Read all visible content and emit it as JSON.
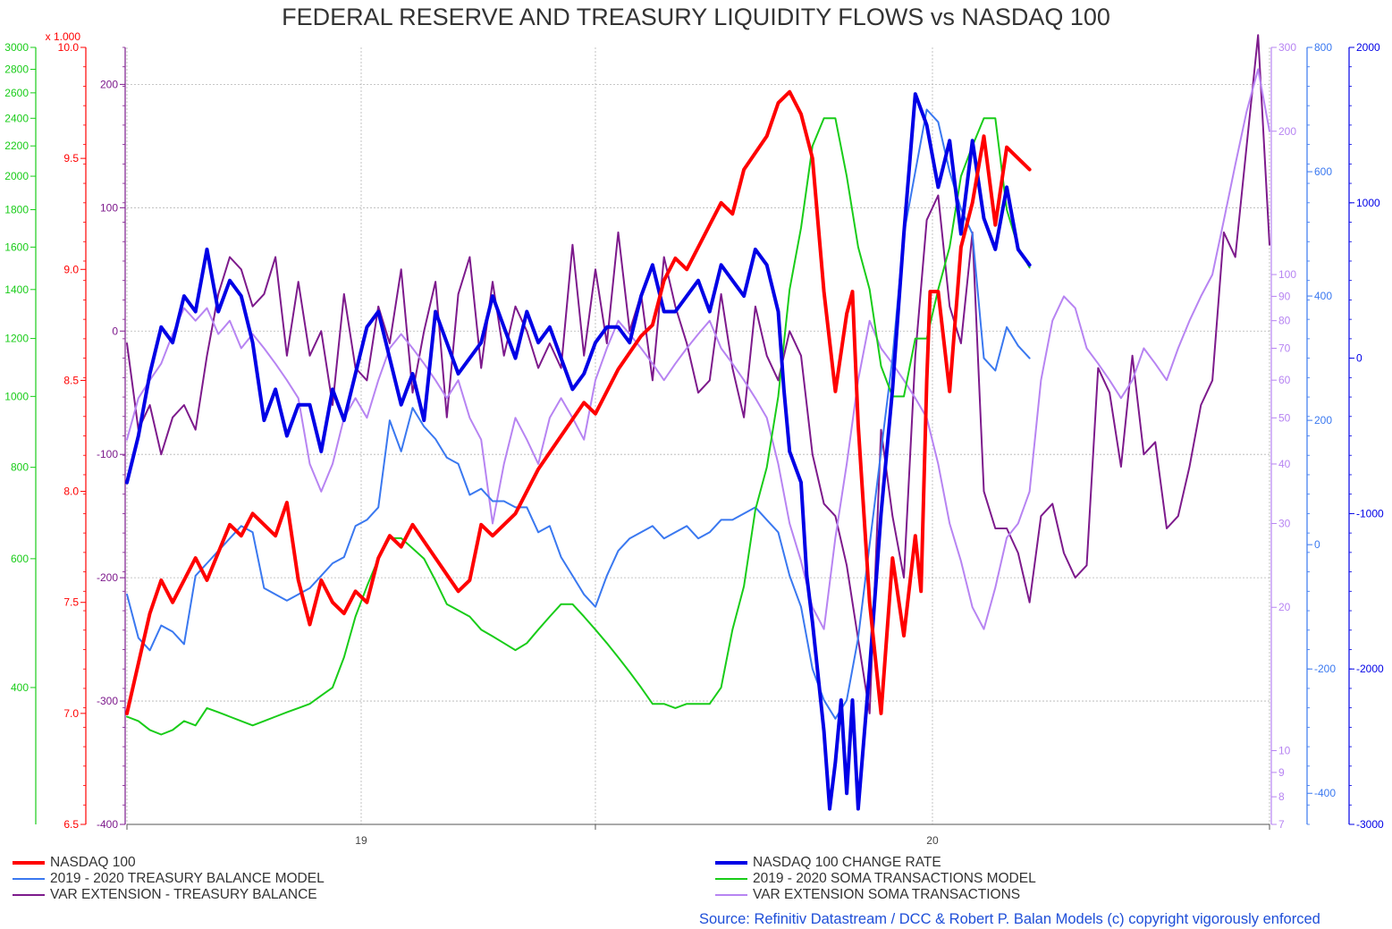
{
  "title": "FEDERAL RESERVE AND TREASURY LIQUIDITY FLOWS vs NASDAQ 100",
  "source": "Source: Refinitiv Datastream / DCC & Robert P. Balan Models (c) copyright vigorously enforced",
  "colors": {
    "nasdaq": "#ff0000",
    "nasdaq_change": "#0000e6",
    "treasury_model": "#3a78f0",
    "soma_model": "#19cc19",
    "var_treasury": "#7d1a8c",
    "var_soma": "#b784f2",
    "grid": "#b4b4b4"
  },
  "legend": [
    {
      "label": "NASDAQ 100",
      "color": "#ff0000",
      "width": 4
    },
    {
      "label": "2019 - 2020 TREASURY BALANCE MODEL",
      "color": "#3a78f0",
      "width": 2
    },
    {
      "label": "VAR EXTENSION - TREASURY BALANCE",
      "color": "#7d1a8c",
      "width": 2
    },
    {
      "label": "NASDAQ 100 CHANGE RATE",
      "color": "#0000e6",
      "width": 4
    },
    {
      "label": "2019 - 2020 SOMA TRANSACTIONS MODEL",
      "color": "#19cc19",
      "width": 2
    },
    {
      "label": "VAR EXTENSION SOMA TRANSACTIONS",
      "color": "#b784f2",
      "width": 2
    }
  ],
  "chart_data": {
    "type": "line",
    "title": "FEDERAL RESERVE AND TREASURY LIQUIDITY FLOWS vs NASDAQ 100",
    "x_ticks": [
      "19",
      "20"
    ],
    "x_range": [
      0,
      100
    ],
    "grid": true,
    "axes": {
      "soma_left": {
        "label": "",
        "color": "#19cc19",
        "scale": "log",
        "range": [
          260,
          3000
        ],
        "ticks": [
          "3000",
          "2800",
          "2600",
          "2400",
          "2200",
          "2000",
          "1800",
          "1600",
          "1400",
          "1200",
          "1000",
          "800",
          "600",
          "400"
        ]
      },
      "nasdaq_left": {
        "label": "x 1.000",
        "color": "#ff0000",
        "scale": "linear",
        "range": [
          6.5,
          10.0
        ],
        "ticks": [
          "10.0",
          "9.5",
          "9.0",
          "8.5",
          "8.0",
          "7.5",
          "7.0",
          "6.5"
        ]
      },
      "treasury_left": {
        "label": "",
        "color": "#7d1a8c",
        "scale": "linear",
        "range": [
          -400,
          230
        ],
        "ticks": [
          "200",
          "100",
          "0",
          "-100",
          "-200",
          "-300",
          "-400"
        ]
      },
      "var_soma_right": {
        "label": "",
        "color": "#b784f2",
        "scale": "log",
        "range": [
          7,
          300
        ],
        "ticks": [
          "300",
          "200",
          "100",
          "90",
          "80",
          "70",
          "60",
          "50",
          "40",
          "30",
          "20",
          "10",
          "9",
          "8",
          "7"
        ]
      },
      "treasury_model_right": {
        "label": "",
        "color": "#3a78f0",
        "scale": "linear",
        "range": [
          -450,
          800
        ],
        "ticks": [
          "800",
          "600",
          "400",
          "200",
          "0",
          "-200",
          "-400"
        ]
      },
      "change_right": {
        "label": "",
        "color": "#0000e6",
        "scale": "linear",
        "range": [
          -3000,
          2000
        ],
        "ticks": [
          "2000",
          "1000",
          "0",
          "-1000",
          "-2000",
          "-3000"
        ]
      }
    },
    "series": [
      {
        "name": "NASDAQ 100",
        "axis": "nasdaq_left",
        "color": "#ff0000",
        "width": 4,
        "x": [
          0,
          2,
          3,
          4,
          6,
          7,
          9,
          10,
          11,
          13,
          14,
          15,
          16,
          17,
          18,
          19,
          20,
          21,
          22,
          23,
          24,
          25,
          27,
          29,
          30,
          31,
          32,
          34,
          36,
          38,
          40,
          41,
          43,
          45,
          46,
          47,
          48,
          49,
          51,
          52,
          53,
          54,
          56,
          57,
          58,
          59,
          60,
          61,
          62,
          63,
          63.5,
          64,
          65,
          66,
          67,
          68,
          69,
          69.5,
          70,
          70.3,
          71,
          72,
          73,
          74,
          75,
          76,
          77,
          79
        ],
        "y": [
          7.0,
          7.45,
          7.6,
          7.5,
          7.7,
          7.6,
          7.85,
          7.8,
          7.9,
          7.8,
          7.95,
          7.6,
          7.4,
          7.6,
          7.5,
          7.45,
          7.55,
          7.5,
          7.7,
          7.8,
          7.75,
          7.85,
          7.7,
          7.55,
          7.6,
          7.85,
          7.8,
          7.9,
          8.1,
          8.25,
          8.4,
          8.35,
          8.55,
          8.7,
          8.75,
          8.95,
          9.05,
          9.0,
          9.2,
          9.3,
          9.25,
          9.45,
          9.6,
          9.75,
          9.8,
          9.7,
          9.5,
          8.9,
          8.45,
          8.8,
          8.9,
          8.3,
          7.5,
          7.0,
          7.7,
          7.35,
          7.8,
          7.55,
          8.5,
          8.9,
          8.9,
          8.45,
          9.1,
          9.3,
          9.6,
          9.2,
          9.55,
          9.45
        ]
      },
      {
        "name": "NASDAQ 100 CHANGE RATE",
        "axis": "change_right",
        "color": "#0000e6",
        "width": 4,
        "x": [
          0,
          1,
          2,
          3,
          4,
          5,
          6,
          7,
          8,
          9,
          10,
          11,
          12,
          13,
          14,
          15,
          16,
          17,
          18,
          19,
          20,
          21,
          22,
          23,
          24,
          25,
          26,
          27,
          28,
          29,
          30,
          31,
          32,
          33,
          34,
          35,
          36,
          37,
          38,
          39,
          40,
          41,
          42,
          43,
          44,
          45,
          46,
          47,
          48,
          49,
          50,
          51,
          52,
          53,
          54,
          55,
          56,
          57,
          57.5,
          58,
          59,
          59.5,
          60,
          61,
          61.5,
          62,
          62.5,
          63,
          63.5,
          64,
          65,
          66,
          67,
          68,
          69,
          70,
          71,
          72,
          73,
          74,
          75,
          76,
          77,
          78,
          79
        ],
        "y": [
          -800,
          -500,
          -100,
          200,
          100,
          400,
          300,
          700,
          300,
          500,
          400,
          100,
          -400,
          -200,
          -500,
          -300,
          -300,
          -600,
          -200,
          -400,
          -100,
          200,
          300,
          0,
          -300,
          -100,
          -400,
          300,
          100,
          -100,
          0,
          100,
          400,
          200,
          0,
          300,
          100,
          200,
          0,
          -200,
          -100,
          100,
          200,
          200,
          100,
          400,
          600,
          300,
          300,
          400,
          500,
          300,
          600,
          500,
          400,
          700,
          600,
          300,
          -200,
          -600,
          -800,
          -1400,
          -1700,
          -2400,
          -2900,
          -2600,
          -2200,
          -2800,
          -2200,
          -2900,
          -2000,
          -1000,
          -200,
          800,
          1700,
          1500,
          1100,
          1400,
          800,
          1400,
          900,
          700,
          1100,
          700,
          600
        ]
      },
      {
        "name": "2019 - 2020 TREASURY BALANCE MODEL",
        "axis": "treasury_model_right",
        "color": "#3a78f0",
        "width": 2,
        "x": [
          0,
          1,
          2,
          3,
          4,
          5,
          6,
          7,
          8,
          9,
          10,
          11,
          12,
          13,
          14,
          15,
          16,
          17,
          18,
          19,
          20,
          21,
          22,
          23,
          24,
          25,
          26,
          27,
          28,
          29,
          30,
          31,
          32,
          33,
          34,
          35,
          36,
          37,
          38,
          39,
          40,
          41,
          42,
          43,
          44,
          45,
          46,
          47,
          48,
          49,
          50,
          51,
          52,
          53,
          54,
          55,
          56,
          57,
          58,
          59,
          60,
          61,
          62,
          63,
          64,
          65,
          66,
          67,
          68,
          69,
          70,
          71,
          72,
          73,
          74,
          75,
          76,
          77,
          78,
          79
        ],
        "y": [
          -80,
          -150,
          -170,
          -130,
          -140,
          -160,
          -50,
          -30,
          -10,
          10,
          30,
          20,
          -70,
          -80,
          -90,
          -80,
          -70,
          -50,
          -30,
          -20,
          30,
          40,
          60,
          200,
          150,
          220,
          190,
          170,
          140,
          130,
          80,
          90,
          70,
          70,
          60,
          60,
          20,
          30,
          -20,
          -50,
          -80,
          -100,
          -50,
          -10,
          10,
          20,
          30,
          10,
          20,
          30,
          10,
          20,
          40,
          40,
          50,
          60,
          40,
          20,
          -50,
          -100,
          -200,
          -250,
          -280,
          -250,
          -150,
          0,
          150,
          300,
          500,
          600,
          700,
          680,
          600,
          540,
          500,
          300,
          280,
          350,
          320,
          300
        ]
      },
      {
        "name": "2019 - 2020 SOMA TRANSACTIONS MODEL",
        "axis": "soma_left",
        "color": "#19cc19",
        "width": 2,
        "x": [
          0,
          1,
          2,
          3,
          4,
          5,
          6,
          7,
          8,
          9,
          10,
          11,
          12,
          13,
          14,
          15,
          16,
          17,
          18,
          19,
          20,
          21,
          22,
          23,
          24,
          25,
          26,
          27,
          28,
          29,
          30,
          31,
          32,
          33,
          34,
          35,
          36,
          37,
          38,
          39,
          40,
          41,
          42,
          43,
          44,
          45,
          46,
          47,
          48,
          49,
          50,
          51,
          52,
          53,
          54,
          55,
          56,
          57,
          58,
          59,
          60,
          61,
          62,
          63,
          64,
          65,
          66,
          67,
          68,
          69,
          70,
          71,
          72,
          73,
          74,
          75,
          76,
          77,
          78,
          79
        ],
        "y": [
          365,
          360,
          350,
          345,
          350,
          360,
          355,
          375,
          370,
          365,
          360,
          355,
          360,
          365,
          370,
          375,
          380,
          390,
          400,
          440,
          500,
          550,
          600,
          640,
          640,
          620,
          600,
          560,
          520,
          510,
          500,
          480,
          470,
          460,
          450,
          460,
          480,
          500,
          520,
          520,
          500,
          480,
          460,
          440,
          420,
          400,
          380,
          380,
          375,
          380,
          380,
          380,
          400,
          480,
          550,
          700,
          800,
          1000,
          1400,
          1700,
          2200,
          2400,
          2400,
          2000,
          1600,
          1400,
          1100,
          1000,
          1000,
          1200,
          1200,
          1400,
          1600,
          2000,
          2200,
          2400,
          2400,
          1800,
          1600,
          1500
        ]
      },
      {
        "name": "VAR EXTENSION - TREASURY BALANCE",
        "axis": "treasury_left",
        "color": "#7d1a8c",
        "width": 2,
        "x": [
          0,
          1,
          2,
          3,
          4,
          5,
          6,
          7,
          8,
          9,
          10,
          11,
          12,
          13,
          14,
          15,
          16,
          17,
          18,
          19,
          20,
          21,
          22,
          23,
          24,
          25,
          26,
          27,
          28,
          29,
          30,
          31,
          32,
          33,
          34,
          35,
          36,
          37,
          38,
          39,
          40,
          41,
          42,
          43,
          44,
          45,
          46,
          47,
          48,
          49,
          50,
          51,
          52,
          53,
          54,
          55,
          56,
          57,
          58,
          59,
          60,
          61,
          62,
          63,
          64,
          65,
          66,
          67,
          68,
          69,
          70,
          71,
          72,
          73,
          74,
          75,
          76,
          77,
          78,
          79,
          80,
          81,
          82,
          83,
          84,
          85,
          86,
          87,
          88,
          89,
          90,
          91,
          92,
          93,
          94,
          95,
          96,
          97,
          98,
          99,
          100
        ],
        "y": [
          -10,
          -80,
          -60,
          -100,
          -70,
          -60,
          -80,
          -20,
          30,
          60,
          50,
          20,
          30,
          60,
          -20,
          40,
          -20,
          0,
          -60,
          30,
          -30,
          -40,
          20,
          -10,
          50,
          -50,
          0,
          40,
          -70,
          30,
          60,
          -30,
          40,
          -20,
          20,
          0,
          -30,
          -10,
          -30,
          70,
          -20,
          50,
          -10,
          80,
          0,
          30,
          -40,
          60,
          20,
          -10,
          -50,
          -40,
          30,
          -30,
          -70,
          20,
          -20,
          -40,
          0,
          -20,
          -100,
          -140,
          -150,
          -190,
          -250,
          -310,
          -80,
          -150,
          -200,
          -20,
          90,
          110,
          20,
          -10,
          80,
          -130,
          -160,
          -160,
          -180,
          -220,
          -150,
          -140,
          -180,
          -200,
          -190,
          -30,
          -50,
          -110,
          -20,
          -100,
          -90,
          -160,
          -150,
          -110,
          -60,
          -40,
          80,
          60,
          150,
          240,
          70
        ]
      },
      {
        "name": "VAR EXTENSION SOMA TRANSACTIONS",
        "axis": "var_soma_right",
        "color": "#b784f2",
        "width": 2,
        "x": [
          0,
          1,
          2,
          3,
          4,
          5,
          6,
          7,
          8,
          9,
          10,
          11,
          12,
          13,
          14,
          15,
          16,
          17,
          18,
          19,
          20,
          21,
          22,
          23,
          24,
          25,
          26,
          27,
          28,
          29,
          30,
          31,
          32,
          33,
          34,
          35,
          36,
          37,
          38,
          39,
          40,
          41,
          42,
          43,
          44,
          45,
          46,
          47,
          48,
          49,
          50,
          51,
          52,
          53,
          54,
          55,
          56,
          57,
          58,
          59,
          60,
          61,
          62,
          63,
          64,
          65,
          66,
          67,
          68,
          69,
          70,
          71,
          72,
          73,
          74,
          75,
          76,
          77,
          78,
          79,
          80,
          81,
          82,
          83,
          84,
          85,
          86,
          87,
          88,
          89,
          90,
          91,
          92,
          93,
          94,
          95,
          96,
          97,
          98,
          99,
          100
        ],
        "y": [
          45,
          55,
          60,
          65,
          75,
          85,
          80,
          85,
          75,
          80,
          70,
          75,
          70,
          65,
          60,
          55,
          40,
          35,
          40,
          50,
          55,
          50,
          60,
          70,
          75,
          70,
          65,
          60,
          55,
          60,
          50,
          45,
          30,
          40,
          50,
          45,
          40,
          50,
          55,
          50,
          45,
          60,
          70,
          80,
          75,
          70,
          65,
          60,
          65,
          70,
          75,
          80,
          70,
          65,
          60,
          55,
          50,
          40,
          30,
          25,
          20,
          18,
          28,
          40,
          60,
          80,
          70,
          65,
          60,
          55,
          50,
          40,
          30,
          25,
          20,
          18,
          22,
          28,
          30,
          35,
          60,
          80,
          90,
          85,
          70,
          65,
          60,
          55,
          60,
          70,
          65,
          60,
          70,
          80,
          90,
          100,
          130,
          170,
          220,
          270,
          200
        ]
      }
    ]
  }
}
